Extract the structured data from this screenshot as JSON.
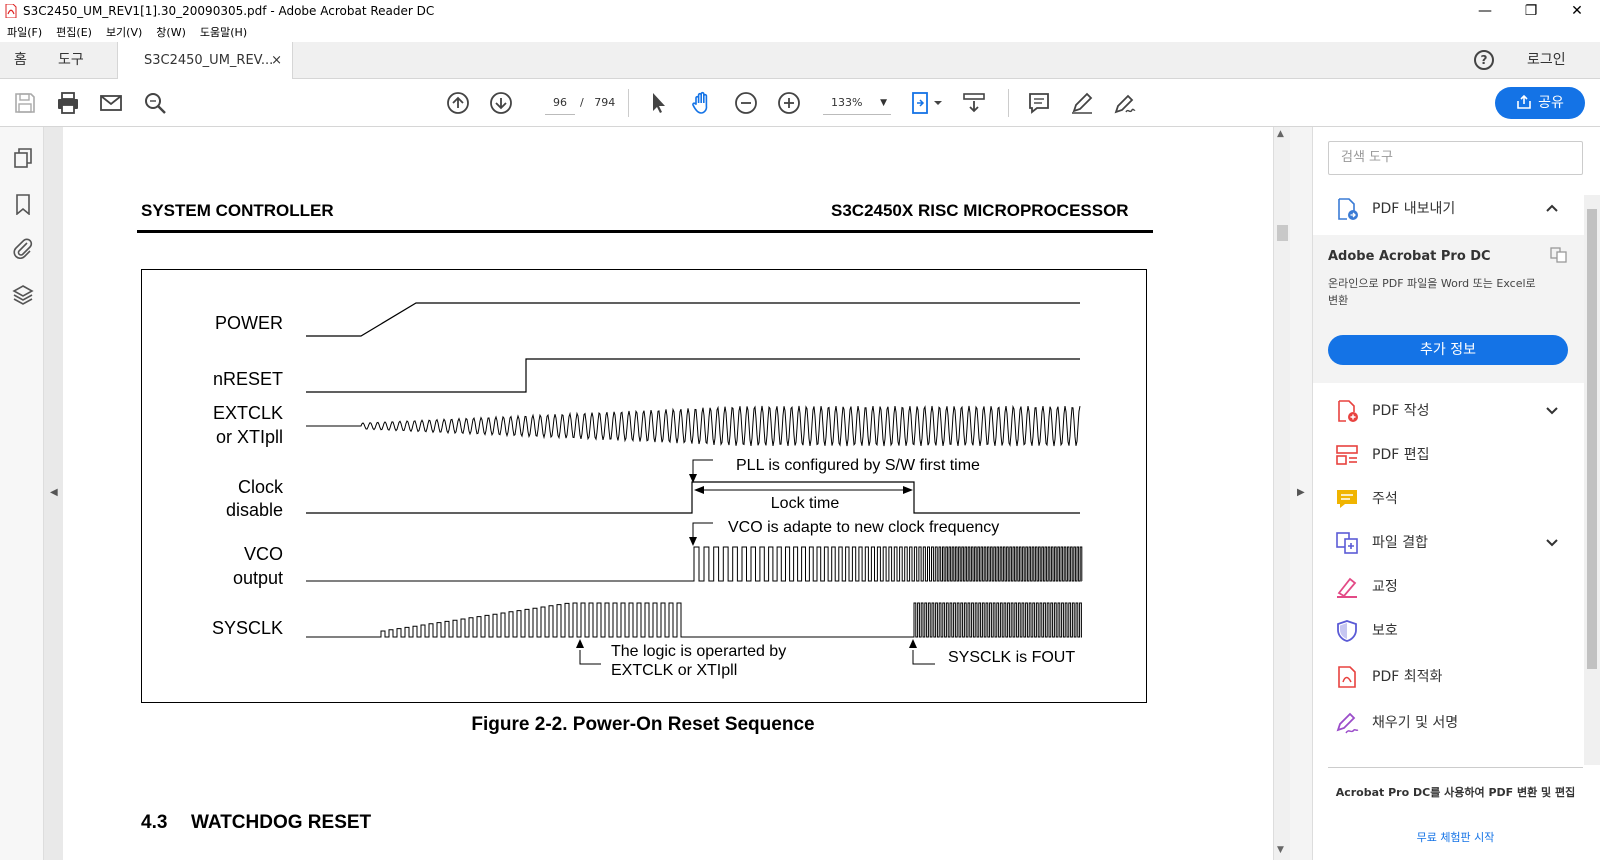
{
  "window": {
    "title": "S3C2450_UM_REV1[1].30_20090305.pdf - Adobe Acrobat Reader DC",
    "minimize": "—",
    "restore": "❐",
    "close": "✕"
  },
  "menu": [
    "파일(F)",
    "편집(E)",
    "보기(V)",
    "창(W)",
    "도움말(H)"
  ],
  "tabs": {
    "home": "홈",
    "tools": "도구",
    "document": "S3C2450_UM_REV...",
    "close": "×",
    "help": "?",
    "login": "로그인"
  },
  "toolbar": {
    "page_current": "96",
    "page_sep": "/",
    "page_total": "794",
    "zoom": "133%",
    "zoom_caret": "▼",
    "share": "공유"
  },
  "right_panel": {
    "search_placeholder": "검색 도구",
    "export_title": "PDF 내보내기",
    "acrobat_title": "Adobe Acrobat Pro DC",
    "acrobat_desc": "온라인으로 PDF 파일을 Word 또는 Excel로 변환",
    "more_info": "추가 정보",
    "tools": [
      {
        "label": "PDF 작성",
        "icon": "create-pdf-icon",
        "color": "#e8423f"
      },
      {
        "label": "PDF 편집",
        "icon": "edit-pdf-icon",
        "color": "#e8423f"
      },
      {
        "label": "주석",
        "icon": "comment-icon",
        "color": "#f0b400"
      },
      {
        "label": "파일 결합",
        "icon": "combine-files-icon",
        "color": "#5b5bd6"
      },
      {
        "label": "교정",
        "icon": "redact-icon",
        "color": "#e34a86"
      },
      {
        "label": "보호",
        "icon": "protect-icon",
        "color": "#5b5bd6"
      },
      {
        "label": "PDF 최적화",
        "icon": "optimize-pdf-icon",
        "color": "#e8423f"
      },
      {
        "label": "채우기 및 서명",
        "icon": "fill-sign-icon",
        "color": "#9b4dca"
      }
    ],
    "promo": "Acrobat Pro DC를 사용하여 PDF 변환 및 편집",
    "trial_link": "무료 체험판 시작"
  },
  "pdf": {
    "header_left": "SYSTEM CONTROLLER",
    "header_right": "S3C2450X RISC MICROPROCESSOR",
    "signals": {
      "power": "POWER",
      "nreset": "nRESET",
      "extclk_1": "EXTCLK",
      "extclk_2": "or XTIpll",
      "clock_1": "Clock",
      "clock_2": "disable",
      "vco_1": "VCO",
      "vco_2": "output",
      "sysclk": "SYSCLK"
    },
    "annotations": {
      "pll": "PLL is configured by S/W first time",
      "lock": "Lock time",
      "vco": "VCO is adapte to new clock frequency",
      "logic_1": "The logic is operarted by",
      "logic_2": "EXTCLK or XTIpll",
      "fout": "SYSCLK is FOUT"
    },
    "figure_caption": "Figure 2-2. Power-On Reset Sequence",
    "section_number": "4.3",
    "section_title": "WATCHDOG RESET"
  },
  "colors": {
    "accent": "#1473e6"
  }
}
